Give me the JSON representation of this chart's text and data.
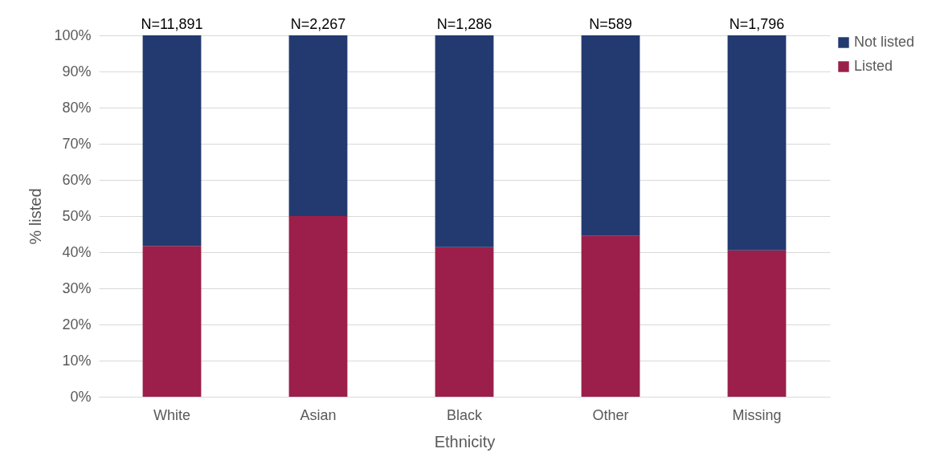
{
  "chart_data": {
    "type": "bar",
    "stacked": true,
    "xlabel": "Ethnicity",
    "ylabel": "% listed",
    "categories": [
      "White",
      "Asian",
      "Black",
      "Other",
      "Missing"
    ],
    "series": [
      {
        "name": "Listed",
        "color": "#9b1f4a",
        "values": [
          41.7,
          50,
          41.4,
          44.5,
          40.5
        ]
      },
      {
        "name": "Not listed",
        "color": "#223a70",
        "values": [
          58.3,
          50,
          58.6,
          55.5,
          59.5
        ]
      }
    ],
    "ylim": [
      0,
      100
    ],
    "yticks": [
      {
        "value": 0,
        "label": "0%"
      },
      {
        "value": 10,
        "label": "10%"
      },
      {
        "value": 20,
        "label": "20%"
      },
      {
        "value": 30,
        "label": "30%"
      },
      {
        "value": 40,
        "label": "40%"
      },
      {
        "value": 50,
        "label": "50%"
      },
      {
        "value": 60,
        "label": "60%"
      },
      {
        "value": 70,
        "label": "70%"
      },
      {
        "value": 80,
        "label": "80%"
      },
      {
        "value": 90,
        "label": "90%"
      },
      {
        "value": 100,
        "label": "100%"
      }
    ],
    "grid": "y",
    "legend": "right",
    "annotations": [
      {
        "text": "N=11,891",
        "x": "White",
        "y": 100
      },
      {
        "text": "N=2,267",
        "x": "Asian",
        "y": 100
      },
      {
        "text": "N=1,286",
        "x": "Black",
        "y": 100
      },
      {
        "text": "N=589",
        "x": "Other",
        "y": 100
      },
      {
        "text": "N=1,796",
        "x": "Missing",
        "y": 100
      }
    ]
  }
}
